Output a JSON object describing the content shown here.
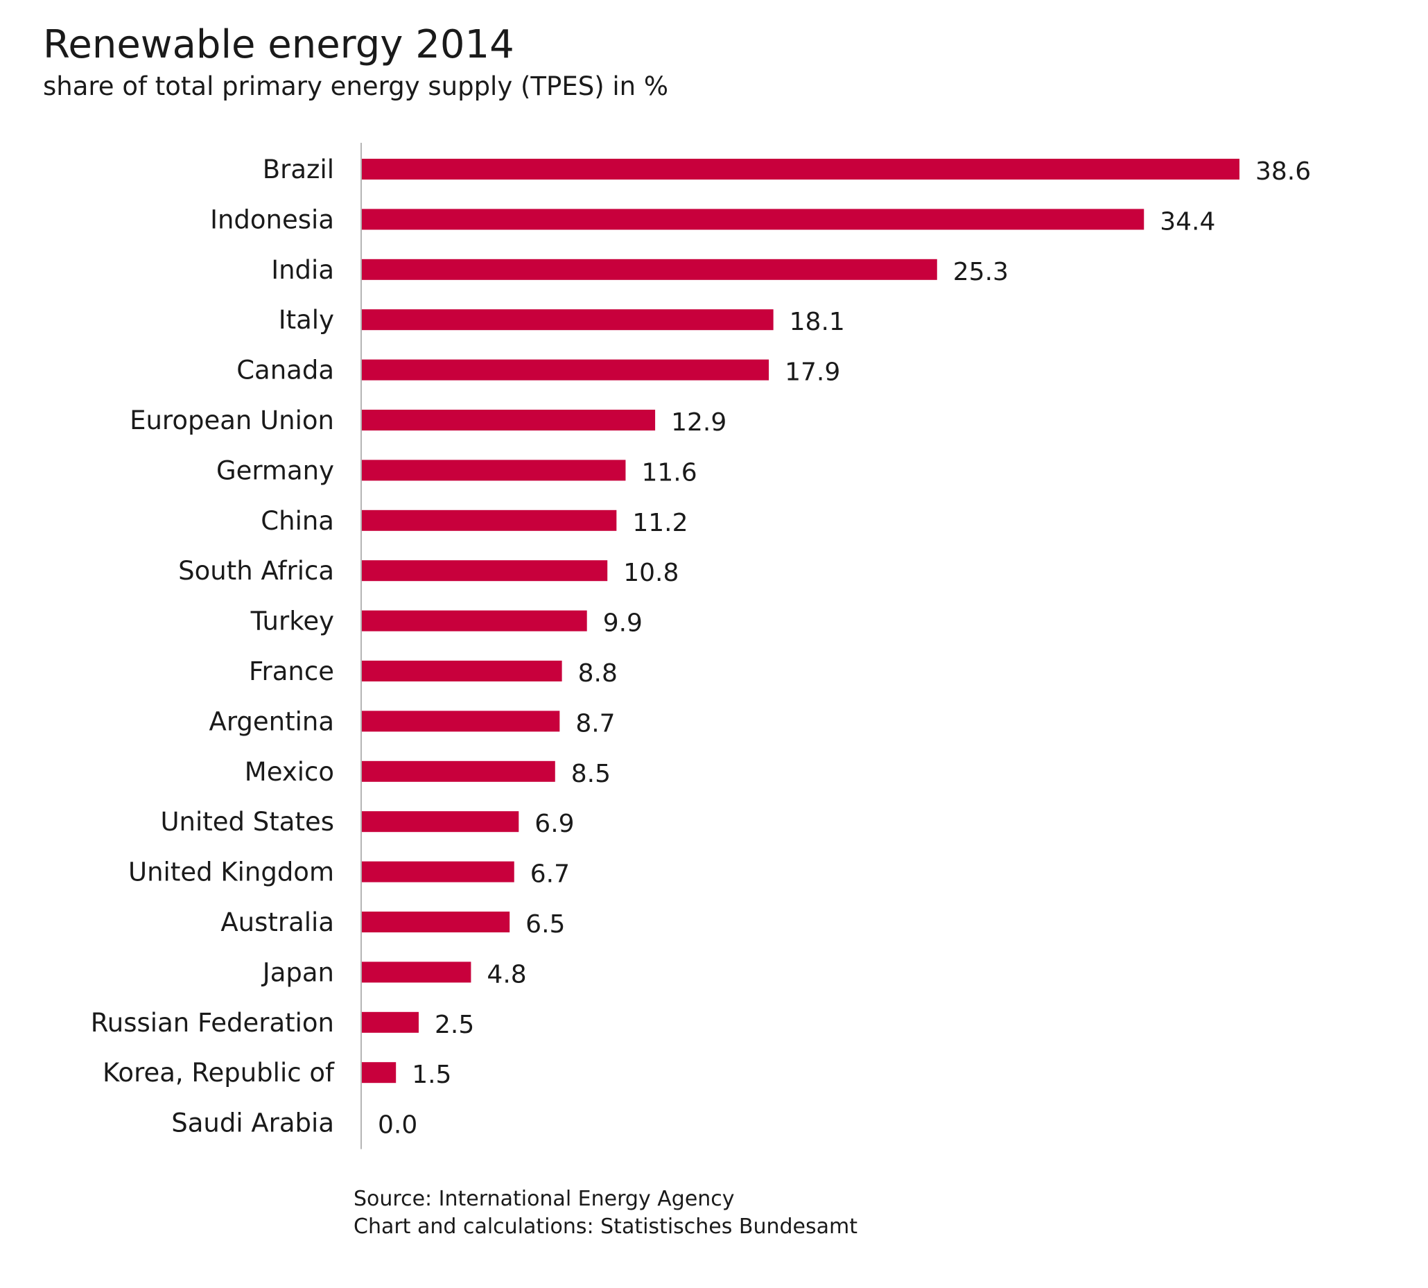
{
  "header": {
    "title": "Renewable energy 2014",
    "subtitle": "share of total primary energy supply (TPES) in %"
  },
  "footer": {
    "source_line": "Source: International Energy Agency",
    "credit_line": "Chart and calculations: Statistisches Bundesamt"
  },
  "chart_data": {
    "type": "bar",
    "orientation": "horizontal",
    "title": "Renewable energy 2014",
    "subtitle": "share of total primary energy supply (TPES) in %",
    "categories": [
      "Brazil",
      "Indonesia",
      "India",
      "Italy",
      "Canada",
      "European Union",
      "Germany",
      "China",
      "South Africa",
      "Turkey",
      "France",
      "Argentina",
      "Mexico",
      "United States",
      "United Kingdom",
      "Australia",
      "Japan",
      "Russian Federation",
      "Korea, Republic of",
      "Saudi Arabia"
    ],
    "values": [
      38.6,
      34.4,
      25.3,
      18.1,
      17.9,
      12.9,
      11.6,
      11.2,
      10.8,
      9.9,
      8.8,
      8.7,
      8.5,
      6.9,
      6.7,
      6.5,
      4.8,
      2.5,
      1.5,
      0.0
    ],
    "value_labels": [
      "38.6",
      "34.4",
      "25.3",
      "18.1",
      "17.9",
      "12.9",
      "11.6",
      "11.2",
      "10.8",
      "9.9",
      "8.8",
      "8.7",
      "8.5",
      "6.9",
      "6.7",
      "6.5",
      "4.8",
      "2.5",
      "1.5",
      "0.0"
    ],
    "xlim": [
      0,
      38.6
    ],
    "grid": false,
    "legend": "none",
    "bar_color": "#c8003c",
    "axis_color": "#b5b5b5"
  }
}
